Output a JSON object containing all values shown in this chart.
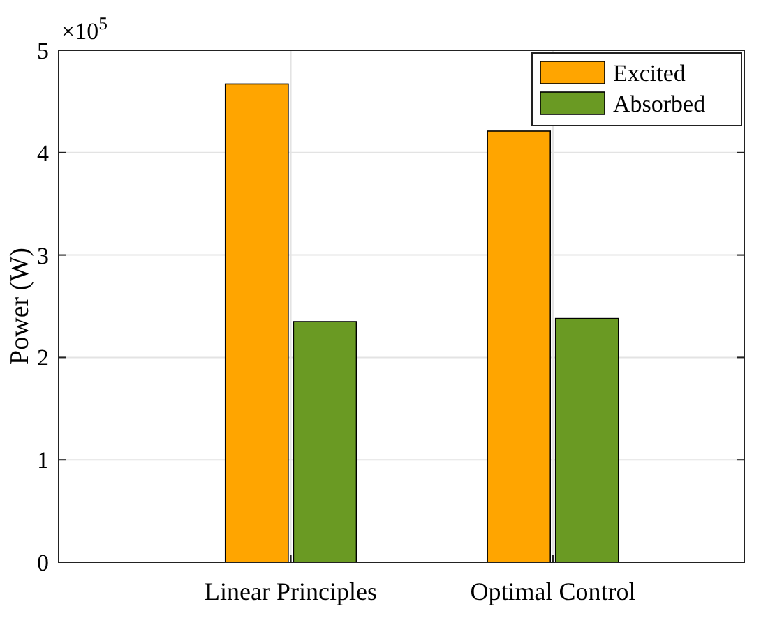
{
  "chart_data": {
    "type": "bar",
    "categories": [
      "Linear Principles",
      "Optimal Control"
    ],
    "series": [
      {
        "name": "Excited",
        "color": "#ffa500",
        "values": [
          4.67,
          4.21
        ]
      },
      {
        "name": "Absorbed",
        "color": "#6a9a23",
        "values": [
          2.35,
          2.38
        ]
      }
    ],
    "ylabel": "Power (W)",
    "ylim": [
      0,
      5
    ],
    "yticks": [
      0,
      1,
      2,
      3,
      4,
      5
    ],
    "annotations": [
      "×10$^{5}$"
    ],
    "grid": true,
    "legend": "top right"
  }
}
